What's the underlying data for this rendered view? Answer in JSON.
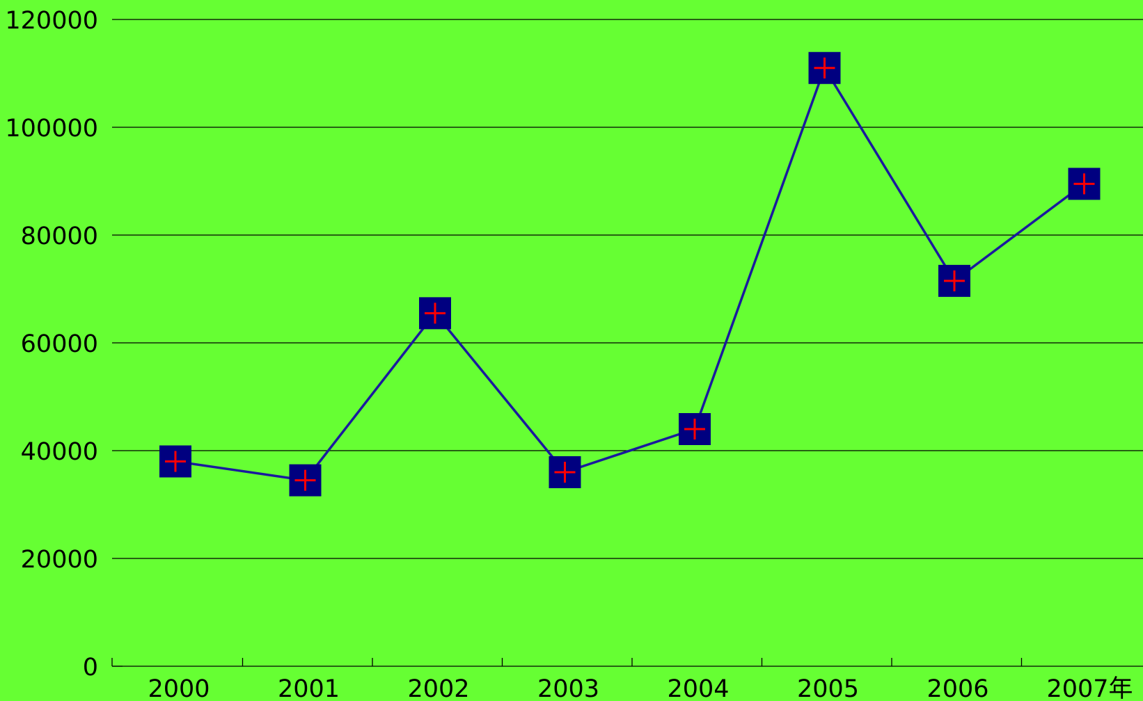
{
  "chart_data": {
    "type": "line",
    "categories": [
      "2000",
      "2001",
      "2002",
      "2003",
      "2004",
      "2005",
      "2006",
      "2007年"
    ],
    "series": [
      {
        "values": [
          38000,
          34500,
          65500,
          36000,
          44000,
          111000,
          71500,
          89500
        ]
      }
    ],
    "yticks": [
      "0",
      "20000",
      "40000",
      "60000",
      "80000",
      "100000",
      "120000"
    ],
    "ylim": [
      0,
      120000
    ],
    "grid": true,
    "legend": "none",
    "colors": {
      "background": "#66ff33",
      "line": "#1a1a9e",
      "marker_fill": "#000080",
      "marker_cross": "#ff0000",
      "grid": "#000000"
    },
    "marker": "square-with-plus"
  }
}
